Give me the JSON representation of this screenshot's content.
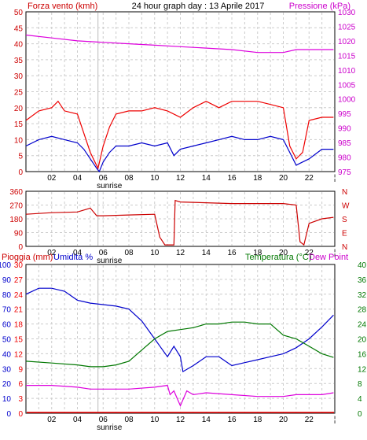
{
  "chart_data": [
    {
      "type": "line",
      "title": "24 hour graph day : 13 Aprile 2017",
      "left_label": "Forza vento (kmh)",
      "right_label": "Pressione (kPa)",
      "x_ticks": [
        "02",
        "04",
        "06",
        "08",
        "10",
        "12",
        "14",
        "16",
        "18",
        "20",
        "22"
      ],
      "x_annotation": "sunrise",
      "ylim": [
        0,
        50
      ],
      "y_ticks": [
        "0",
        "5",
        "10",
        "15",
        "20",
        "25",
        "30",
        "35",
        "40",
        "45",
        "50"
      ],
      "y2lim": [
        975,
        1030
      ],
      "y2_ticks": [
        "975",
        "980",
        "985",
        "990",
        "995",
        "1000",
        "1005",
        "1010",
        "1015",
        "1020",
        "1025",
        "1030"
      ],
      "colors": {
        "gust": "#ee0000",
        "wind": "#0000cc",
        "pressure": "#dd00dd",
        "axis_left": "#cc0000",
        "axis_right": "#cc00cc"
      },
      "gust_x": [
        0,
        1,
        2,
        2.5,
        3,
        4,
        4.5,
        5,
        5.6,
        6,
        6.5,
        7,
        8,
        9,
        10,
        11,
        12,
        13,
        14,
        15,
        16,
        17,
        18,
        19,
        20,
        20.5,
        21,
        21.5,
        22,
        23,
        23.9
      ],
      "gust_y": [
        16,
        19,
        20,
        22,
        19,
        18,
        12,
        6,
        1,
        8,
        14,
        18,
        19,
        19,
        20,
        19,
        17,
        20,
        22,
        20,
        22,
        22,
        22,
        21,
        20,
        8,
        4,
        6,
        16,
        17,
        17
      ],
      "wind_x": [
        0,
        1,
        2,
        3,
        4,
        4.5,
        5,
        5.5,
        5.7,
        6,
        6.5,
        7,
        8,
        9,
        10,
        11,
        11.5,
        12,
        13,
        14,
        15,
        16,
        17,
        18,
        19,
        20,
        20.5,
        21,
        21.5,
        22,
        23,
        23.9
      ],
      "wind_y": [
        8,
        10,
        11,
        10,
        9,
        7,
        4,
        1,
        0,
        3,
        6,
        8,
        8,
        9,
        8,
        9,
        5,
        7,
        8,
        9,
        10,
        11,
        10,
        10,
        11,
        10,
        6,
        2,
        3,
        4,
        7,
        7
      ],
      "pressure_x": [
        0,
        2,
        4,
        6,
        8,
        10,
        12,
        14,
        16,
        18,
        20,
        21,
        22,
        23.9
      ],
      "pressure_y": [
        1022,
        1021,
        1020,
        1019.5,
        1019,
        1018.5,
        1018,
        1017.5,
        1017,
        1016,
        1016,
        1017,
        1017,
        1017
      ]
    },
    {
      "type": "line",
      "x_ticks": [
        "02",
        "04",
        "06",
        "08",
        "10",
        "12",
        "14",
        "16",
        "18",
        "20",
        "22"
      ],
      "x_annotation": "sunrise",
      "ylim": [
        0,
        360
      ],
      "y_ticks": [
        "0",
        "90",
        "180",
        "270",
        "360"
      ],
      "right_ticks": [
        "N",
        "E",
        "S",
        "W",
        "N"
      ],
      "color": "#cc0000",
      "dir_x": [
        0,
        2,
        4,
        5,
        5.5,
        6,
        8,
        10,
        10.4,
        10.8,
        11.5,
        11.6,
        12,
        14,
        16,
        18,
        20,
        21,
        21.3,
        21.6,
        22,
        23,
        23.9
      ],
      "dir_y": [
        210,
        220,
        225,
        250,
        200,
        200,
        205,
        210,
        60,
        10,
        10,
        300,
        290,
        285,
        280,
        280,
        280,
        270,
        30,
        10,
        150,
        180,
        190
      ]
    },
    {
      "type": "line",
      "left_label_1": "Pioggia (mm)",
      "left_label_2": "Umidita %",
      "right_label_1": "Temperatura (°C)",
      "right_label_2": "Dew Point",
      "x_ticks": [
        "02",
        "04",
        "06",
        "08",
        "10",
        "12",
        "14",
        "16",
        "18",
        "20",
        "22"
      ],
      "x_annotation": "sunrise",
      "humidity_ticks": [
        "0",
        "10",
        "20",
        "30",
        "40",
        "50",
        "60",
        "70",
        "80",
        "90",
        "100"
      ],
      "rain_ticks": [
        "0",
        "3",
        "6",
        "9",
        "12",
        "15",
        "18",
        "21",
        "24",
        "27",
        "30"
      ],
      "temp_ticks": [
        "0",
        "4",
        "8",
        "12",
        "16",
        "20",
        "24",
        "28",
        "32",
        "36",
        "40"
      ],
      "colors": {
        "humidity": "#0000cc",
        "temperature": "#007700",
        "dewpoint": "#dd00dd",
        "rain": "#ee0000"
      },
      "humidity_x": [
        0,
        1,
        2,
        3,
        4,
        5,
        6,
        7,
        8,
        9,
        10,
        10.5,
        11,
        11.5,
        12,
        12.2,
        13,
        14,
        15,
        16,
        17,
        18,
        19,
        20,
        21,
        22,
        23,
        23.9
      ],
      "humidity_y": [
        80,
        84,
        84,
        82,
        76,
        74,
        73,
        72,
        70,
        62,
        50,
        44,
        38,
        45,
        38,
        28,
        32,
        38,
        38,
        32,
        34,
        36,
        38,
        40,
        44,
        50,
        58,
        66
      ],
      "temperature_x": [
        0,
        2,
        4,
        5,
        6,
        7,
        8,
        9,
        10,
        11,
        12,
        13,
        14,
        15,
        16,
        17,
        18,
        19,
        20,
        21,
        22,
        23,
        23.9
      ],
      "temperature_y": [
        14,
        13.5,
        13,
        12.5,
        12.5,
        13,
        14,
        17,
        20,
        22,
        22.5,
        23,
        24,
        24,
        24.5,
        24.5,
        24,
        24,
        21,
        20,
        18,
        16,
        15
      ],
      "dewpoint_x": [
        0,
        2,
        4,
        5,
        6,
        8,
        10,
        11,
        11.2,
        11.5,
        12,
        12.5,
        13,
        14,
        16,
        18,
        20,
        21,
        22,
        23,
        23.9
      ],
      "dewpoint_y": [
        7.5,
        7.5,
        7,
        6.5,
        6.5,
        6.5,
        7,
        7.5,
        5,
        6,
        2,
        6,
        5,
        5.5,
        5,
        4.5,
        4.5,
        5,
        5,
        5,
        5.5
      ],
      "rain_value": 0
    }
  ]
}
